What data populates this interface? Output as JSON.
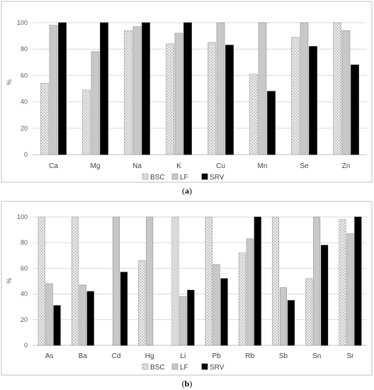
{
  "colors": {
    "BSC": "#d0d0d0",
    "LF": "#c8c8c8",
    "SRV": "#000000",
    "grid": "#d9d9d9"
  },
  "chart_data": [
    {
      "type": "bar",
      "caption_prefix": "(",
      "caption_letter": "a",
      "caption_suffix": ")",
      "ylabel": "%",
      "ylim": [
        0,
        100
      ],
      "yticks": [
        0,
        20,
        40,
        60,
        80,
        100
      ],
      "grid": true,
      "legend": "bottom-center",
      "categories": [
        "Ca",
        "Mg",
        "Na",
        "K",
        "Cu",
        "Mn",
        "Se",
        "Zn"
      ],
      "series": [
        {
          "name": "BSC",
          "values": [
            54,
            49,
            94,
            84,
            85,
            61,
            89,
            100
          ]
        },
        {
          "name": "LF",
          "values": [
            98,
            78,
            97,
            92,
            100,
            100,
            100,
            94
          ]
        },
        {
          "name": "SRV",
          "values": [
            100,
            100,
            100,
            100,
            83,
            48,
            82,
            68
          ]
        }
      ]
    },
    {
      "type": "bar",
      "caption_prefix": "(",
      "caption_letter": "b",
      "caption_suffix": ")",
      "ylabel": "%",
      "ylim": [
        0,
        100
      ],
      "yticks": [
        0,
        20,
        40,
        60,
        80,
        100
      ],
      "grid": true,
      "legend": "bottom-center",
      "categories": [
        "As",
        "Ba",
        "Cd",
        "Hg",
        "Li",
        "Pb",
        "Rb",
        "Sb",
        "Sn",
        "Sr"
      ],
      "series": [
        {
          "name": "BSC",
          "values": [
            100,
            100,
            0,
            66,
            100,
            100,
            72,
            100,
            52,
            98
          ]
        },
        {
          "name": "LF",
          "values": [
            48,
            47,
            100,
            100,
            38,
            63,
            83,
            45,
            100,
            87
          ]
        },
        {
          "name": "SRV",
          "values": [
            31,
            42,
            57,
            0,
            43,
            52,
            100,
            35,
            78,
            100
          ]
        }
      ]
    }
  ]
}
